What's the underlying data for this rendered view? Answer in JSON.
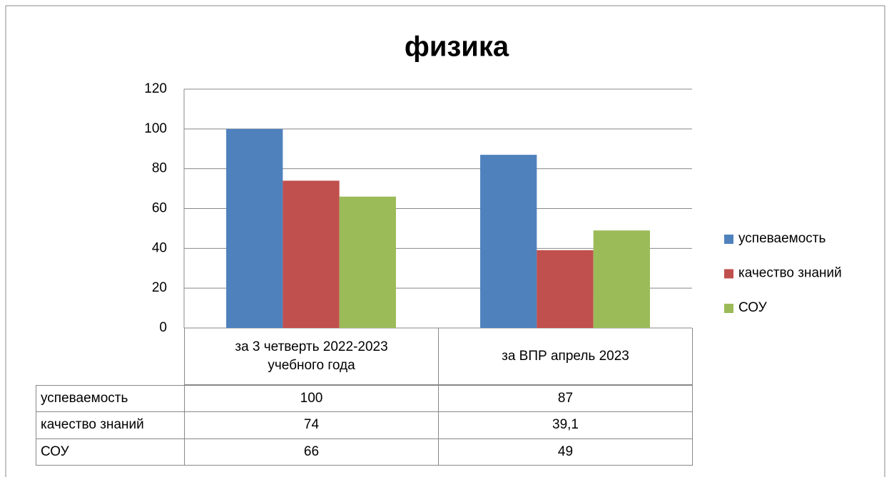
{
  "chart_data": {
    "type": "bar",
    "title": "физика",
    "categories": [
      "за  3 четверть 2022-2023 учебного года",
      "за ВПР апрель 2023"
    ],
    "series": [
      {
        "name": "успеваемость",
        "color": "#4f81bd",
        "values": [
          100,
          87
        ]
      },
      {
        "name": "качество знаний",
        "color": "#c0504d",
        "values": [
          74,
          39.1
        ],
        "value_labels": [
          "74",
          "39,1"
        ]
      },
      {
        "name": "СОУ",
        "color": "#9bbb59",
        "values": [
          66,
          49
        ]
      }
    ],
    "ylim": [
      0,
      120
    ],
    "yticks": [
      0,
      20,
      40,
      60,
      80,
      100,
      120
    ],
    "grid": true,
    "legend": "right",
    "data_table": true
  }
}
